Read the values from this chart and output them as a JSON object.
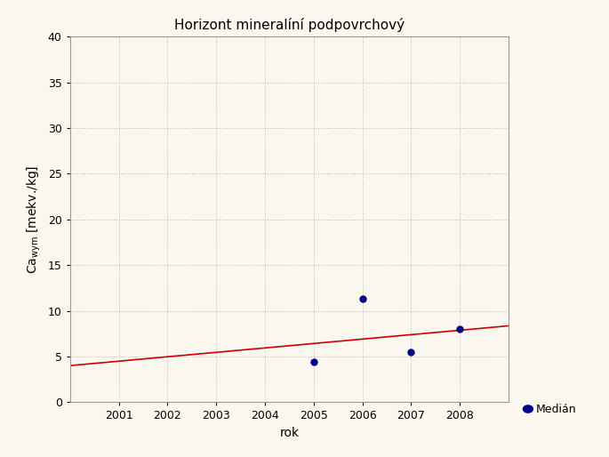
{
  "title": "Horizont mineralíní podpovrchový",
  "xlabel": "rok",
  "xlim": [
    2000,
    2009
  ],
  "ylim": [
    0,
    40
  ],
  "xticks": [
    2001,
    2002,
    2003,
    2004,
    2005,
    2006,
    2007,
    2008
  ],
  "yticks": [
    0,
    5,
    10,
    15,
    20,
    25,
    30,
    35,
    40
  ],
  "data_x": [
    2005,
    2006,
    2007,
    2008
  ],
  "data_y": [
    4.4,
    11.3,
    5.5,
    8.0
  ],
  "trend_x": [
    2000,
    2009
  ],
  "trend_y": [
    4.0,
    8.35
  ],
  "dot_color": "#00008B",
  "line_color": "#CC0000",
  "bg_color": "#FAF8EE",
  "grid_color": "#BBBBBB",
  "legend_label": "Medián",
  "title_fontsize": 11,
  "label_fontsize": 10,
  "tick_fontsize": 9
}
